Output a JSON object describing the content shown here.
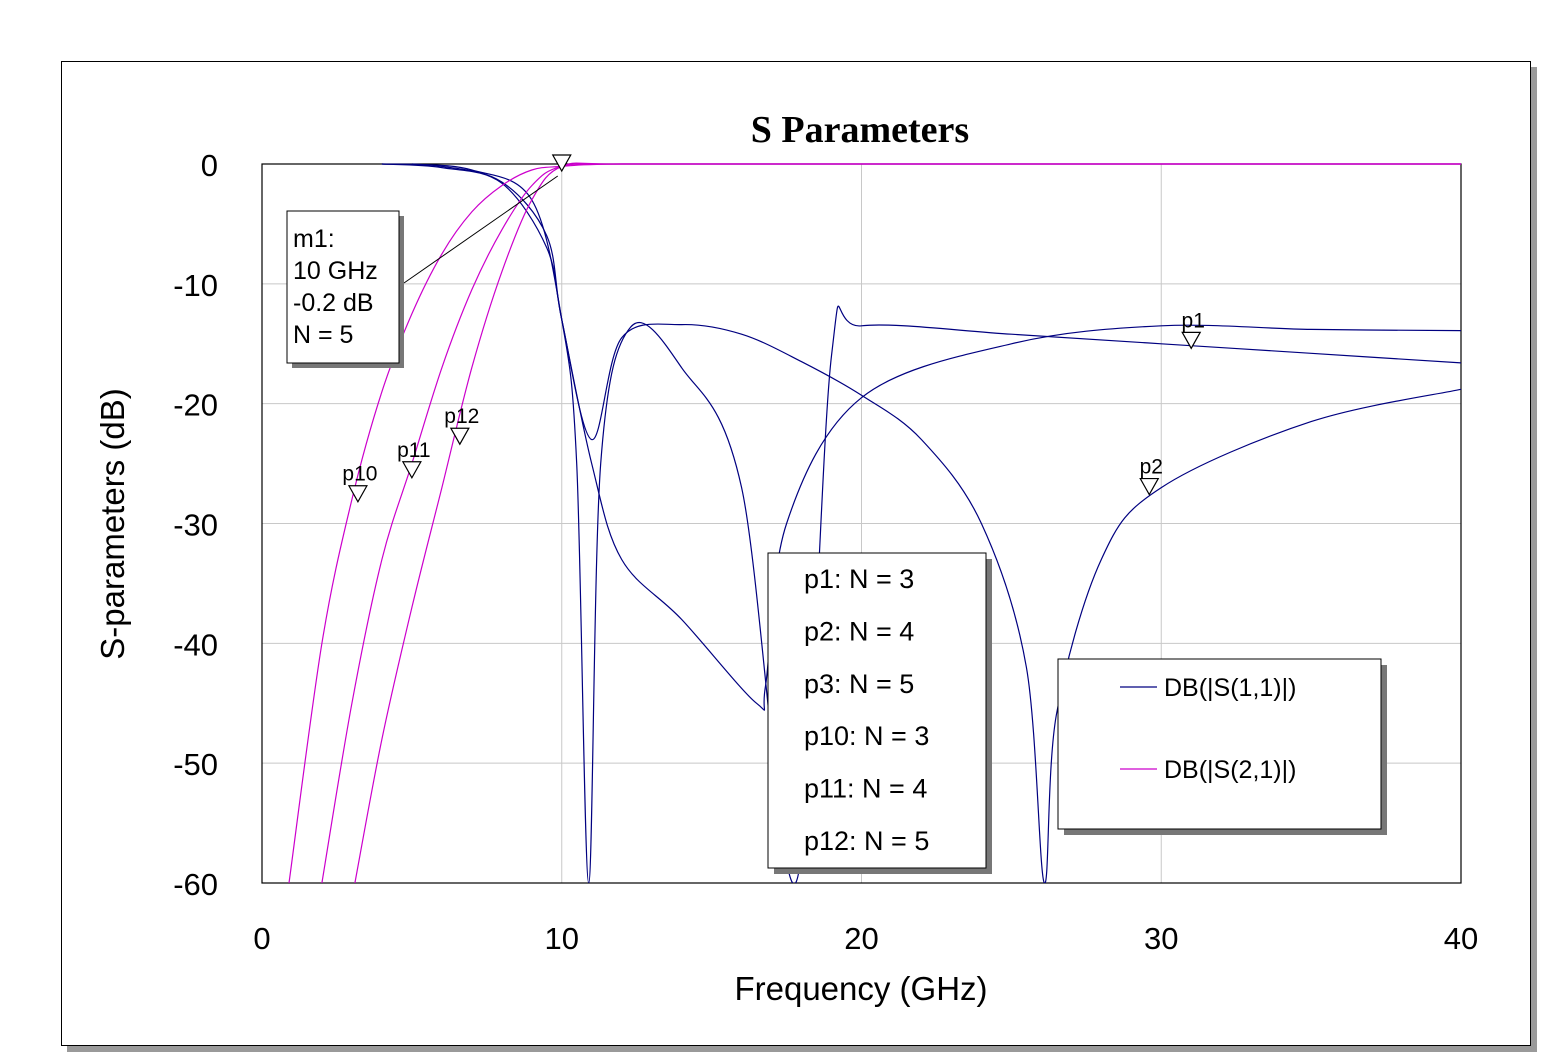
{
  "chart_data": {
    "type": "line",
    "title": "S Parameters",
    "xlabel": "Frequency (GHz)",
    "ylabel": "S-parameters (dB)",
    "xlim": [
      0,
      40
    ],
    "ylim": [
      -60,
      0
    ],
    "x_ticks": [
      "0",
      "10",
      "20",
      "30",
      "40"
    ],
    "y_ticks": [
      "0",
      "-10",
      "-20",
      "-30",
      "-40",
      "-50",
      "-60"
    ],
    "grid": true,
    "legend_position": "bottom-right",
    "series": [
      {
        "name": "DB(|S(1,1)|)",
        "color": "#000080",
        "N": 3,
        "cutoff_ghz": 10,
        "ripple_db": -13.5,
        "points": [
          [
            4,
            0
          ],
          [
            6,
            -0.3
          ],
          [
            8,
            -1.6
          ],
          [
            9.5,
            -7
          ],
          [
            10,
            -13
          ],
          [
            11,
            -25
          ],
          [
            12,
            -33
          ],
          [
            14,
            -38
          ],
          [
            16.5,
            -45
          ],
          [
            16.8,
            -43.5
          ],
          [
            17.5,
            -30
          ],
          [
            20,
            -19.5
          ],
          [
            25,
            -15
          ],
          [
            30,
            -13.5
          ],
          [
            35,
            -13.8
          ],
          [
            40,
            -13.9
          ]
        ]
      },
      {
        "name": "DB(|S(1,1)|)",
        "color": "#000080",
        "N": 4,
        "cutoff_ghz": 10,
        "points": [
          [
            4,
            0
          ],
          [
            6,
            -0.2
          ],
          [
            8,
            -1.5
          ],
          [
            9.5,
            -6
          ],
          [
            10,
            -13
          ],
          [
            11,
            -23
          ],
          [
            12,
            -14.5
          ],
          [
            14,
            -13.4
          ],
          [
            16,
            -14.2
          ],
          [
            18,
            -16.5
          ],
          [
            20,
            -19.3
          ],
          [
            22,
            -23
          ],
          [
            24,
            -30
          ],
          [
            25.5,
            -42
          ],
          [
            26.1,
            -60
          ],
          [
            26.5,
            -46
          ],
          [
            28,
            -33
          ],
          [
            30,
            -27
          ],
          [
            35,
            -21.5
          ],
          [
            40,
            -18.8
          ]
        ]
      },
      {
        "name": "DB(|S(1,1)|)",
        "color": "#000080",
        "N": 5,
        "cutoff_ghz": 10,
        "points": [
          [
            5,
            0
          ],
          [
            7,
            -0.5
          ],
          [
            9,
            -3
          ],
          [
            10,
            -13
          ],
          [
            10.5,
            -25
          ],
          [
            10.9,
            -60
          ],
          [
            11.3,
            -25
          ],
          [
            12.3,
            -13.6
          ],
          [
            14,
            -17
          ],
          [
            16,
            -27
          ],
          [
            17.8,
            -60
          ],
          [
            19,
            -16
          ],
          [
            20,
            -13.5
          ],
          [
            25,
            -14.2
          ],
          [
            30,
            -15
          ],
          [
            35,
            -15.8
          ],
          [
            40,
            -16.6
          ]
        ]
      },
      {
        "name": "DB(|S(2,1)|)",
        "color": "#cc00cc",
        "N": 3,
        "cutoff_ghz": 10,
        "points": [
          [
            0.9,
            -60
          ],
          [
            2,
            -40
          ],
          [
            3,
            -28
          ],
          [
            4,
            -19
          ],
          [
            5,
            -12.5
          ],
          [
            6,
            -7.5
          ],
          [
            7,
            -4
          ],
          [
            8,
            -1.8
          ],
          [
            9,
            -0.5
          ],
          [
            10,
            -0.2
          ],
          [
            12,
            0
          ],
          [
            20,
            0
          ],
          [
            40,
            0
          ]
        ]
      },
      {
        "name": "DB(|S(2,1)|)",
        "color": "#cc00cc",
        "N": 4,
        "cutoff_ghz": 10,
        "points": [
          [
            2,
            -60
          ],
          [
            3,
            -45
          ],
          [
            4,
            -33
          ],
          [
            5,
            -25
          ],
          [
            6,
            -17
          ],
          [
            7,
            -10.5
          ],
          [
            8,
            -5.5
          ],
          [
            9,
            -1.8
          ],
          [
            10,
            -0.2
          ],
          [
            12,
            0
          ],
          [
            20,
            0
          ],
          [
            40,
            0
          ]
        ]
      },
      {
        "name": "DB(|S(2,1)|)",
        "color": "#cc00cc",
        "N": 5,
        "cutoff_ghz": 10,
        "points": [
          [
            3.1,
            -60
          ],
          [
            4,
            -48
          ],
          [
            5,
            -37
          ],
          [
            6,
            -27
          ],
          [
            7,
            -17
          ],
          [
            8,
            -9
          ],
          [
            9,
            -3
          ],
          [
            10,
            -0.2
          ],
          [
            12,
            0
          ],
          [
            20,
            0
          ],
          [
            40,
            0
          ]
        ]
      }
    ],
    "markers": [
      {
        "label": "p1",
        "x": 31,
        "y": -14.8
      },
      {
        "label": "p2",
        "x": 29.6,
        "y": -27
      },
      {
        "label": "p10",
        "x": 3.2,
        "y": -27.6
      },
      {
        "label": "p11",
        "x": 5,
        "y": -25.6
      },
      {
        "label": "p12",
        "x": 6.6,
        "y": -22.8
      },
      {
        "label": "m1",
        "x": 10,
        "y": 0
      }
    ],
    "marker_note": {
      "lines": [
        "m1:",
        "10 GHz",
        "-0.2 dB",
        "N = 5"
      ]
    },
    "parameter_legend": [
      "p1: N = 3",
      "p2: N = 4",
      "p3: N = 5",
      "p10: N = 3",
      "p11: N = 4",
      "p12: N = 5"
    ],
    "legend": [
      {
        "label": "DB(|S(1,1)|)",
        "color": "#000080"
      },
      {
        "label": "DB(|S(2,1)|)",
        "color": "#cc00cc"
      }
    ]
  }
}
